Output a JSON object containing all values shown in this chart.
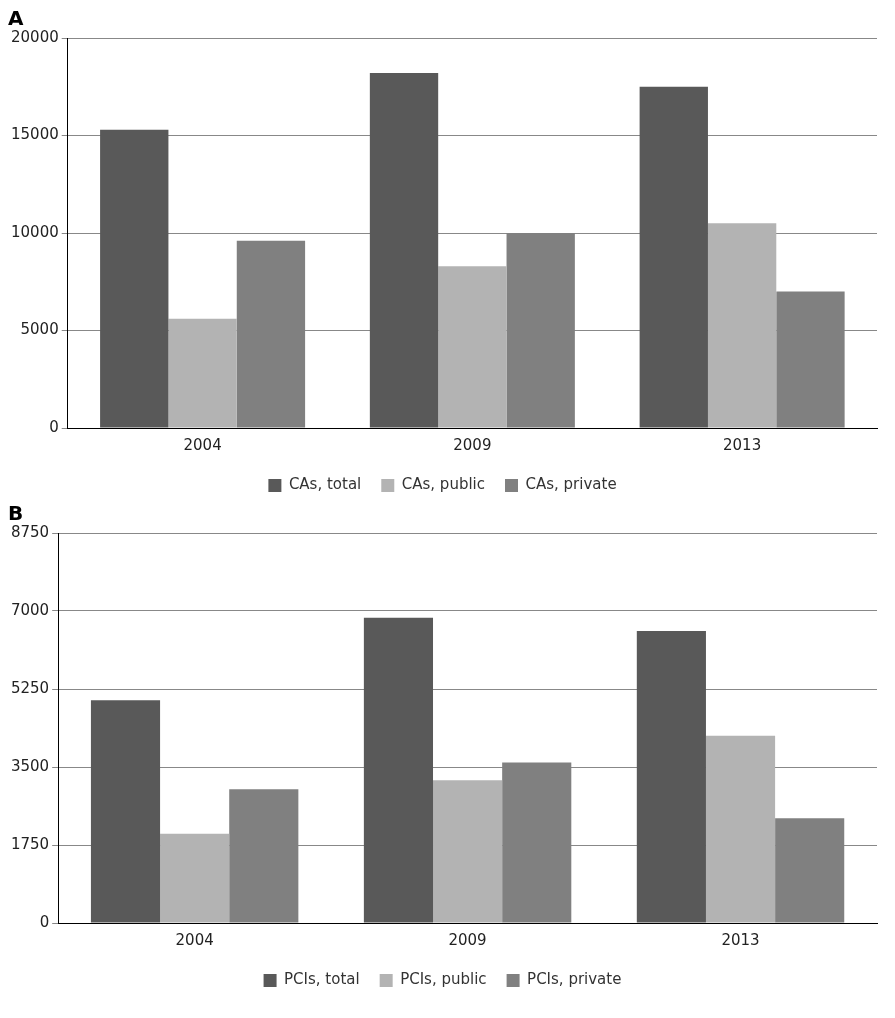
{
  "chart_data": [
    {
      "type": "bar",
      "title": "A",
      "categories": [
        "2004",
        "2009",
        "2013"
      ],
      "series": [
        {
          "name": "CAs, total",
          "color": "#595959",
          "values": [
            15300,
            18200,
            17500
          ]
        },
        {
          "name": "CAs, public",
          "color": "#b3b3b3",
          "values": [
            5600,
            8300,
            10500
          ]
        },
        {
          "name": "CAs, private",
          "color": "#808080",
          "values": [
            9600,
            10000,
            7000
          ]
        }
      ],
      "ylim": [
        0,
        20000
      ],
      "yticks": [
        0,
        5000,
        10000,
        15000,
        20000
      ],
      "grid": "y",
      "legend": "bottom"
    },
    {
      "type": "bar",
      "title": "B",
      "categories": [
        "2004",
        "2009",
        "2013"
      ],
      "series": [
        {
          "name": "PCIs, total",
          "color": "#595959",
          "values": [
            5000,
            6850,
            6550
          ]
        },
        {
          "name": "PCIs, public",
          "color": "#b3b3b3",
          "values": [
            2000,
            3200,
            4200
          ]
        },
        {
          "name": "PCIs, private",
          "color": "#808080",
          "values": [
            3000,
            3600,
            2350
          ]
        }
      ],
      "ylim": [
        0,
        8750
      ],
      "yticks": [
        0,
        1750,
        3500,
        5250,
        7000,
        8750
      ],
      "grid": "y",
      "legend": "bottom"
    }
  ]
}
